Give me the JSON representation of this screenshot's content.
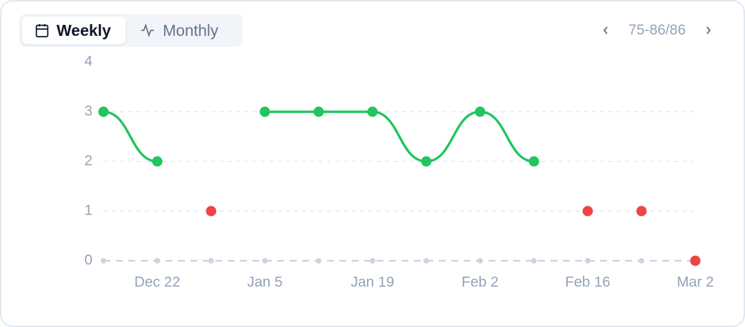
{
  "controls": {
    "tabs": [
      "Weekly",
      "Monthly"
    ],
    "range": "75-86/86"
  },
  "chart_data": {
    "type": "line",
    "categories": [
      null,
      "Dec 22",
      null,
      "Jan 5",
      null,
      "Jan 19",
      null,
      "Feb 2",
      null,
      "Feb 16",
      null,
      "Mar 2"
    ],
    "series": [
      {
        "color": "#22c55e",
        "line": true,
        "values": [
          3,
          2,
          null,
          3,
          3,
          3,
          2,
          3,
          2,
          null,
          null,
          null
        ]
      },
      {
        "color": "#ef4444",
        "line": false,
        "values": [
          null,
          null,
          1,
          null,
          null,
          null,
          null,
          null,
          null,
          1,
          1,
          0
        ]
      }
    ],
    "ylim": [
      0,
      4
    ],
    "yticks": [
      0,
      1,
      2,
      3,
      4
    ],
    "grid": true
  }
}
